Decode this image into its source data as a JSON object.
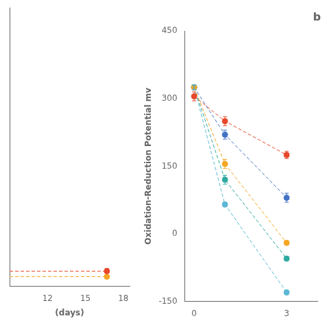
{
  "chart_data": [
    {
      "type": "line",
      "xlabel": "(days)",
      "xlim": [
        9,
        18.5
      ],
      "xticks": [
        12,
        15,
        18
      ],
      "ylim": [
        -55,
        450
      ],
      "tick_labels": "x",
      "grid": false,
      "line_style": "dashed",
      "marker": "o",
      "series": [
        {
          "color": "#E8472A",
          "x": [
            9,
            16.7
          ],
          "values": [
            -28,
            -28
          ],
          "yerr_upper": [
            null,
            5
          ]
        },
        {
          "color": "#F5A623",
          "x": [
            9,
            16.7
          ],
          "values": [
            -38,
            -38
          ],
          "yerr_upper": [
            null,
            0
          ]
        }
      ]
    },
    {
      "type": "line",
      "title": "b",
      "ylabel": "Oxidation-Reduction Potential mv",
      "xlim": [
        -0.3,
        4.0
      ],
      "xticks": [
        0,
        3
      ],
      "ylim": [
        -150,
        450
      ],
      "yticks": [
        -150,
        0,
        150,
        300,
        450
      ],
      "grid": false,
      "line_style": "dashed",
      "marker": "o",
      "series": [
        {
          "color": "#F5A623",
          "x": [
            0,
            1,
            3
          ],
          "values": [
            325,
            155,
            -20
          ],
          "yerr": [
            5,
            10,
            5
          ]
        },
        {
          "color": "#E8472A",
          "x": [
            0,
            1,
            3
          ],
          "values": [
            305,
            250,
            175
          ],
          "yerr": [
            10,
            10,
            8
          ]
        },
        {
          "color": "#4472C4",
          "x": [
            0,
            1,
            3
          ],
          "values": [
            325,
            220,
            80
          ],
          "yerr": [
            5,
            10,
            10
          ]
        },
        {
          "color": "#2EAAA0",
          "x": [
            0,
            1,
            3
          ],
          "values": [
            325,
            120,
            -55
          ],
          "yerr": [
            5,
            10,
            5
          ]
        },
        {
          "color": "#5BB8D4",
          "x": [
            0,
            1,
            3
          ],
          "values": [
            325,
            65,
            -130
          ],
          "yerr": [
            5,
            5,
            5
          ]
        }
      ]
    }
  ]
}
